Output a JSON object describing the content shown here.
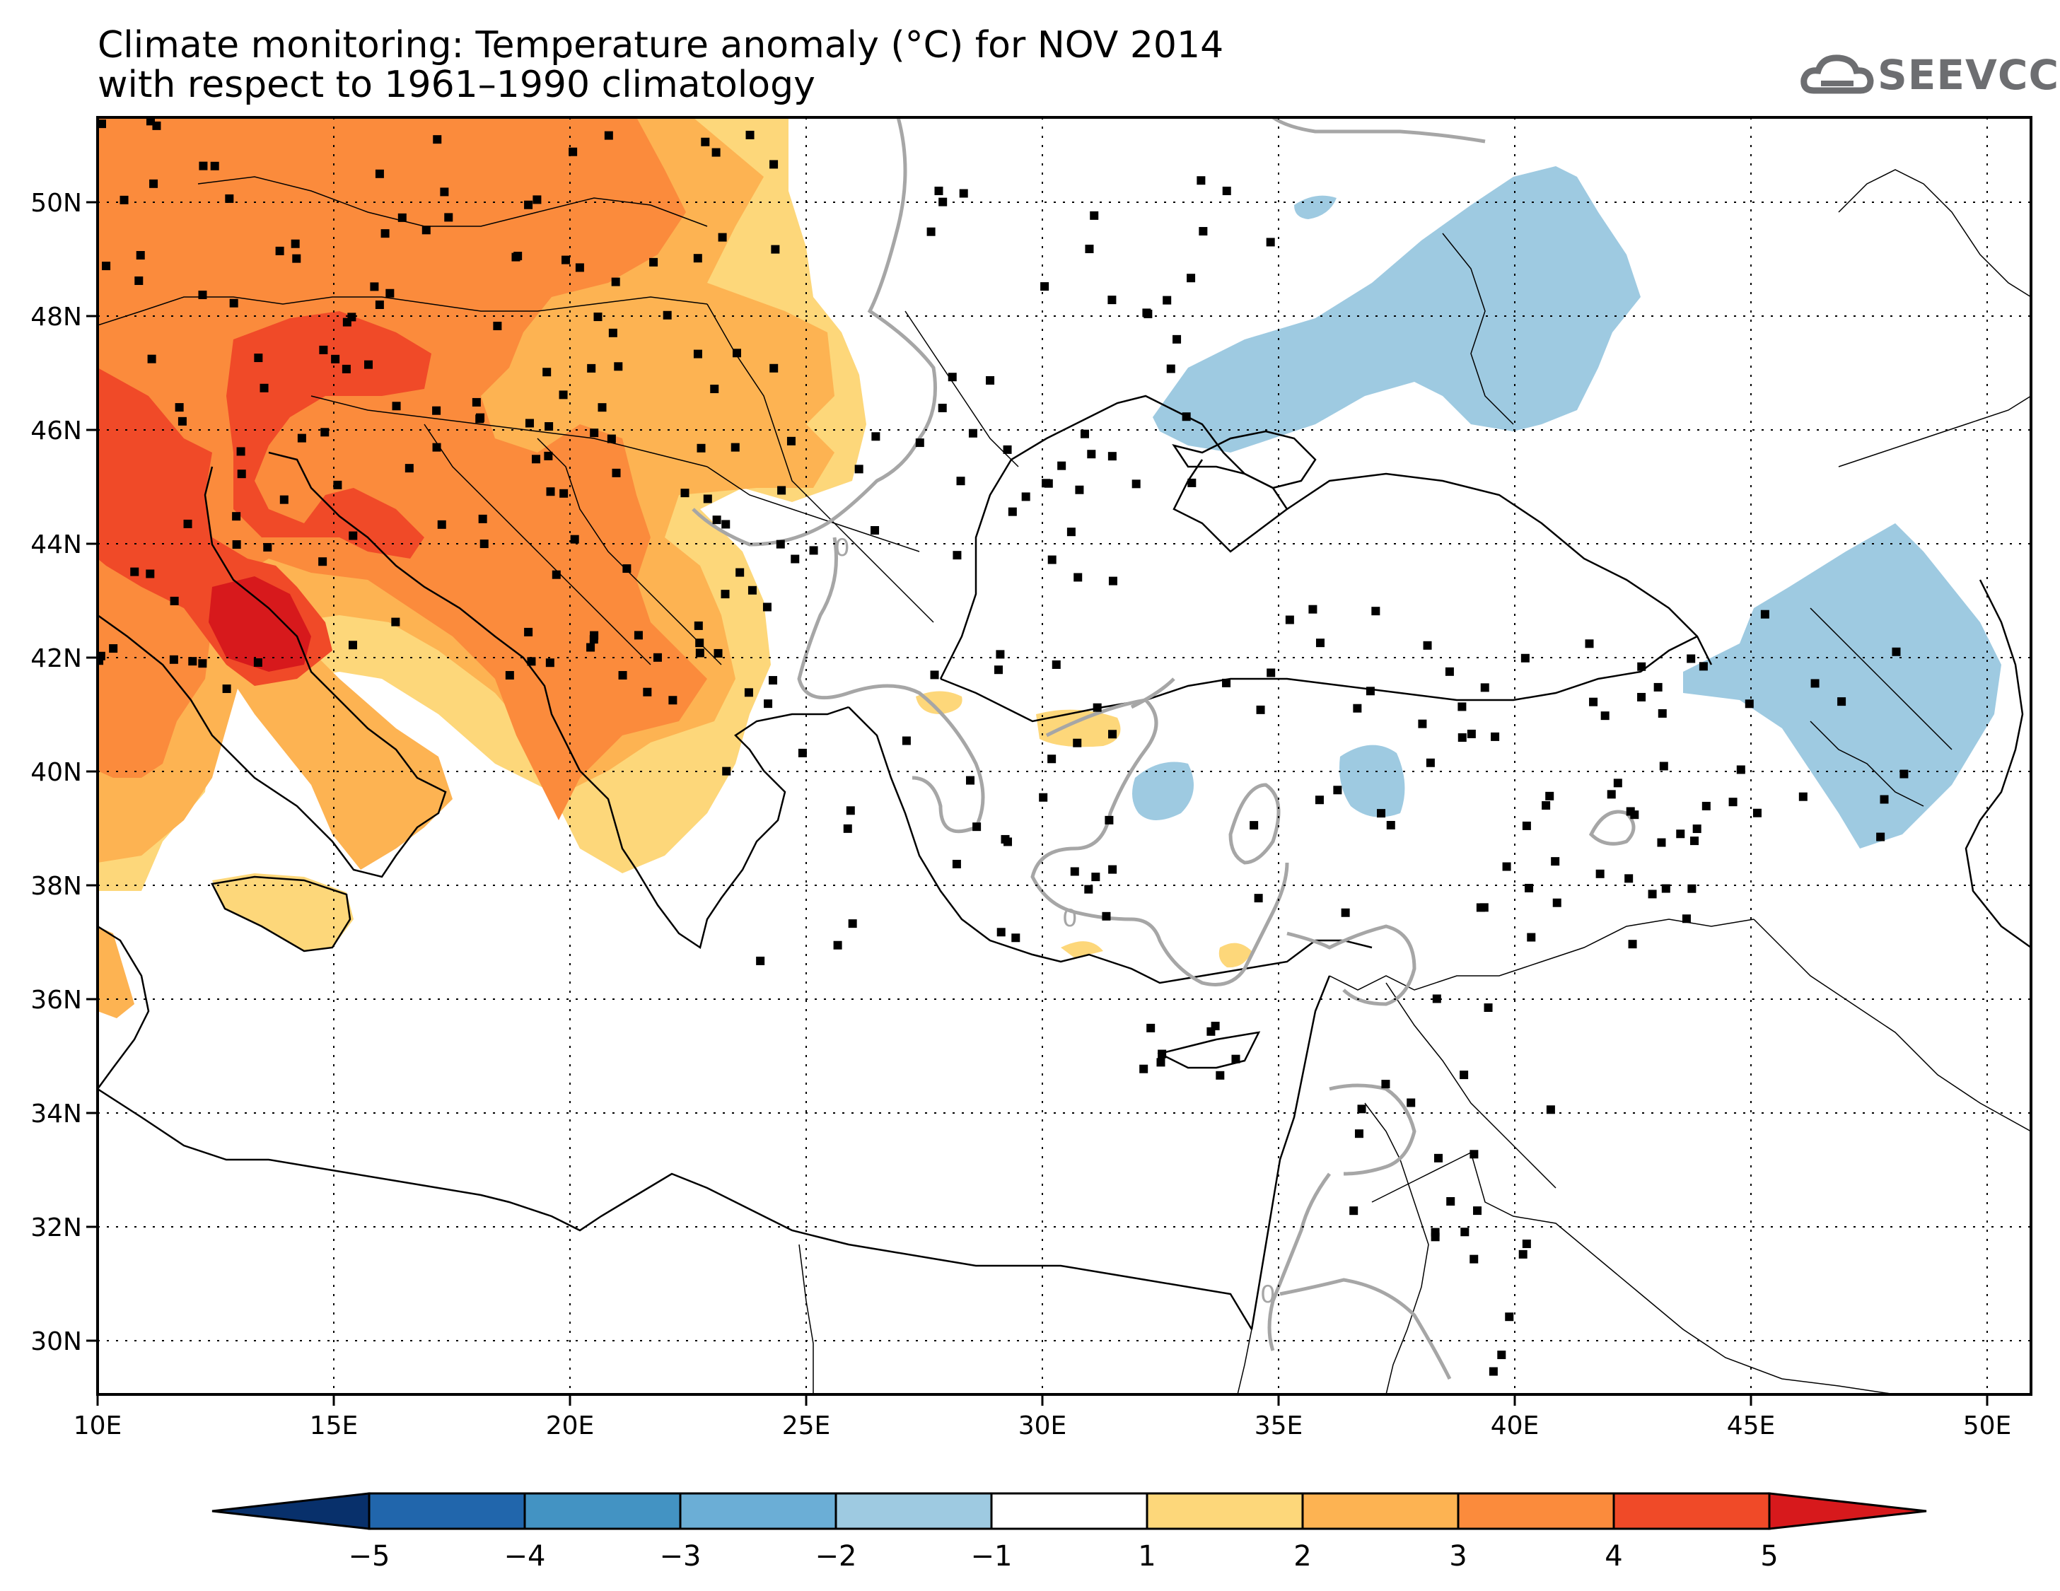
{
  "title": {
    "line1": "Climate monitoring: Temperature anomaly (°C) for NOV 2014",
    "line2": "with respect to 1961–1990 climatology"
  },
  "logo": {
    "text": "SEEVCCC",
    "icon": "cloud-logo-icon"
  },
  "map": {
    "lon_labels": [
      "10E",
      "15E",
      "20E",
      "25E",
      "30E",
      "35E",
      "40E",
      "45E",
      "50E"
    ],
    "lat_labels": [
      "50N",
      "48N",
      "46N",
      "44N",
      "42N",
      "40N",
      "38N",
      "36N",
      "34N",
      "32N",
      "30N"
    ],
    "contour_labels": [
      "0",
      "0",
      "0"
    ]
  },
  "colorbar": {
    "labels": [
      "−5",
      "−4",
      "−3",
      "−2",
      "−1",
      "1",
      "2",
      "3",
      "4",
      "5"
    ],
    "colors": [
      "#08306b",
      "#2166ac",
      "#4393c3",
      "#6baed6",
      "#9ecae1",
      "#ffffff",
      "#fdd77a",
      "#fdb352",
      "#fb8b3c",
      "#f04a28",
      "#d7191c"
    ]
  },
  "colors": {
    "warm1": "#fdd77a",
    "warm2": "#fdb352",
    "warm3": "#fb8b3c",
    "warm4": "#f04a28",
    "warm5": "#d7191c",
    "cool1": "#9ecae1",
    "contour": "#a6a6a6"
  }
}
